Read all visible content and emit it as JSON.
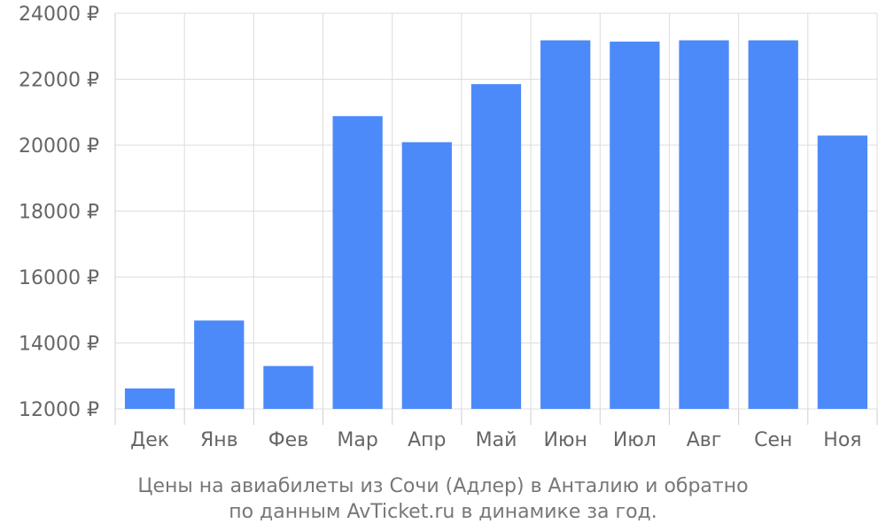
{
  "chart_data": {
    "type": "bar",
    "categories": [
      "Дек",
      "Янв",
      "Фев",
      "Мар",
      "Апр",
      "Май",
      "Июн",
      "Июл",
      "Авг",
      "Сен",
      "Ноя"
    ],
    "values": [
      12620,
      14680,
      13300,
      20880,
      20090,
      21850,
      23180,
      23140,
      23180,
      23180,
      20290
    ],
    "ylim": [
      12000,
      24000
    ],
    "yticks": [
      12000,
      14000,
      16000,
      18000,
      20000,
      22000,
      24000
    ],
    "ytick_suffix": " ₽",
    "grid": true,
    "bar_color": "#4d8af9",
    "caption_lines": [
      "Цены на авиабилеты из Сочи (Адлер) в Анталию и обратно",
      "по данным AvTicket.ru в динамике за год."
    ]
  }
}
